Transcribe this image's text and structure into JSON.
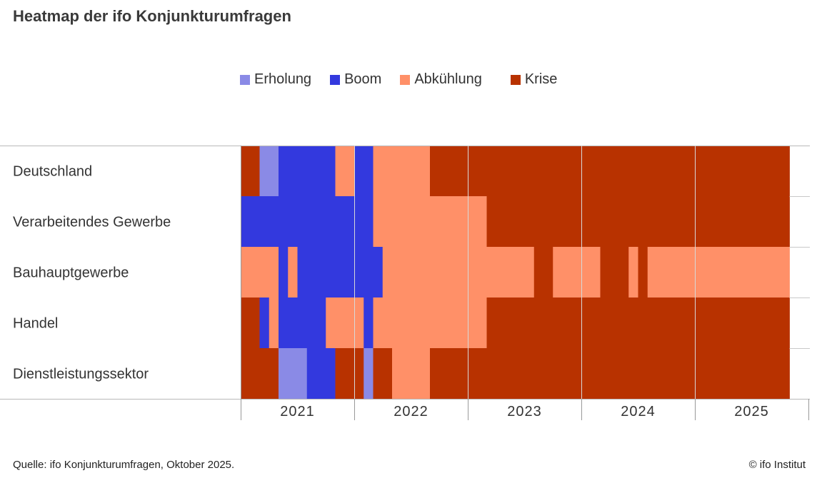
{
  "title": "Heatmap der ifo Konjunkturumfragen",
  "source": "Quelle: ifo Konjunkturumfragen, Oktober 2025.",
  "copyright": "© ifo Institut",
  "colors": {
    "Erholung": "#8a8ae6",
    "Boom": "#3339de",
    "Abkühlung": "#ff9068",
    "Krise": "#b83200"
  },
  "chart_data": {
    "type": "heatmap",
    "title": "Heatmap der ifo Konjunkturumfragen",
    "legend": [
      "Erholung",
      "Boom",
      "Abkühlung",
      "Krise"
    ],
    "legend_position": "top-center",
    "x_ticks": [
      "2021",
      "2022",
      "2023",
      "2024",
      "2025"
    ],
    "x_range": [
      "2021-01",
      "2025-10"
    ],
    "rows": [
      {
        "name": "Deutschland",
        "segments": [
          {
            "phase": "Krise",
            "start": "2021-01",
            "end": "2021-02"
          },
          {
            "phase": "Erholung",
            "start": "2021-03",
            "end": "2021-04"
          },
          {
            "phase": "Boom",
            "start": "2021-05",
            "end": "2021-10"
          },
          {
            "phase": "Abkühlung",
            "start": "2021-11",
            "end": "2021-12"
          },
          {
            "phase": "Boom",
            "start": "2022-01",
            "end": "2022-02"
          },
          {
            "phase": "Abkühlung",
            "start": "2022-03",
            "end": "2022-08"
          },
          {
            "phase": "Krise",
            "start": "2022-09",
            "end": "2025-10"
          }
        ]
      },
      {
        "name": "Verarbeitendes Gewerbe",
        "segments": [
          {
            "phase": "Boom",
            "start": "2021-01",
            "end": "2022-02"
          },
          {
            "phase": "Abkühlung",
            "start": "2022-03",
            "end": "2023-02"
          },
          {
            "phase": "Krise",
            "start": "2023-03",
            "end": "2025-10"
          }
        ]
      },
      {
        "name": "Bauhauptgewerbe",
        "segments": [
          {
            "phase": "Abkühlung",
            "start": "2021-01",
            "end": "2021-04"
          },
          {
            "phase": "Boom",
            "start": "2021-05",
            "end": "2021-05"
          },
          {
            "phase": "Abkühlung",
            "start": "2021-06",
            "end": "2021-06"
          },
          {
            "phase": "Boom",
            "start": "2021-07",
            "end": "2022-03"
          },
          {
            "phase": "Abkühlung",
            "start": "2022-04",
            "end": "2023-07"
          },
          {
            "phase": "Krise",
            "start": "2023-08",
            "end": "2023-09"
          },
          {
            "phase": "Abkühlung",
            "start": "2023-10",
            "end": "2024-02"
          },
          {
            "phase": "Krise",
            "start": "2024-03",
            "end": "2024-05"
          },
          {
            "phase": "Abkühlung",
            "start": "2024-06",
            "end": "2024-06"
          },
          {
            "phase": "Krise",
            "start": "2024-07",
            "end": "2024-07"
          },
          {
            "phase": "Abkühlung",
            "start": "2024-08",
            "end": "2025-10"
          }
        ]
      },
      {
        "name": "Handel",
        "segments": [
          {
            "phase": "Krise",
            "start": "2021-01",
            "end": "2021-02"
          },
          {
            "phase": "Boom",
            "start": "2021-03",
            "end": "2021-03"
          },
          {
            "phase": "Abkühlung",
            "start": "2021-04",
            "end": "2021-04"
          },
          {
            "phase": "Boom",
            "start": "2021-05",
            "end": "2021-09"
          },
          {
            "phase": "Abkühlung",
            "start": "2021-10",
            "end": "2022-01"
          },
          {
            "phase": "Boom",
            "start": "2022-02",
            "end": "2022-02"
          },
          {
            "phase": "Abkühlung",
            "start": "2022-03",
            "end": "2023-02"
          },
          {
            "phase": "Krise",
            "start": "2023-03",
            "end": "2025-10"
          }
        ]
      },
      {
        "name": "Dienstleistungssektor",
        "segments": [
          {
            "phase": "Krise",
            "start": "2021-01",
            "end": "2021-04"
          },
          {
            "phase": "Erholung",
            "start": "2021-05",
            "end": "2021-07"
          },
          {
            "phase": "Boom",
            "start": "2021-08",
            "end": "2021-10"
          },
          {
            "phase": "Krise",
            "start": "2021-11",
            "end": "2022-01"
          },
          {
            "phase": "Erholung",
            "start": "2022-02",
            "end": "2022-02"
          },
          {
            "phase": "Krise",
            "start": "2022-03",
            "end": "2022-04"
          },
          {
            "phase": "Abkühlung",
            "start": "2022-05",
            "end": "2022-08"
          },
          {
            "phase": "Krise",
            "start": "2022-09",
            "end": "2025-10"
          }
        ]
      }
    ]
  }
}
